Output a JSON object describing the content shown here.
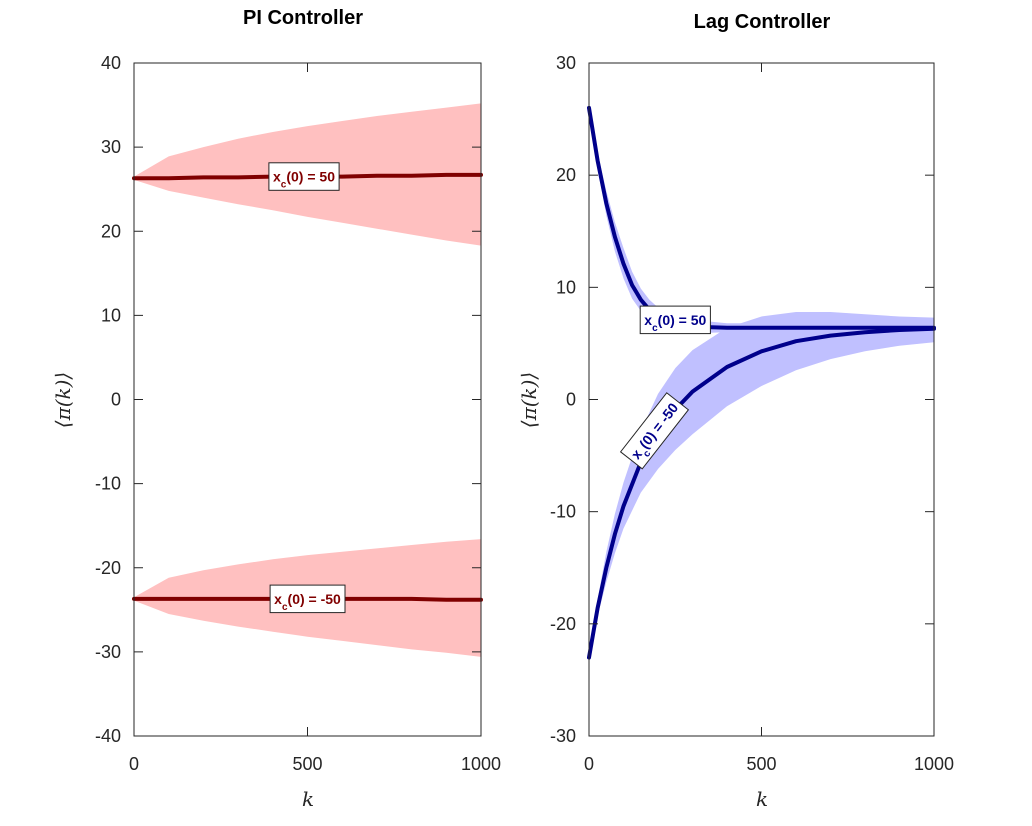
{
  "chart_data": [
    {
      "type": "line",
      "title": "PI Controller",
      "xlabel": "k",
      "ylabel": "⟨π(k)⟩",
      "xlim": [
        0,
        1000
      ],
      "ylim": [
        -40,
        40
      ],
      "xticks": [
        0,
        500,
        1000
      ],
      "xtick_labels": [
        "0",
        "500",
        "1000"
      ],
      "yticks": [
        40,
        30,
        20,
        10,
        0,
        -10,
        -20,
        -30,
        -40
      ],
      "ytick_labels": [
        "40",
        "30",
        "20",
        "10",
        "0",
        "-10",
        "-20",
        "-30",
        "-40"
      ],
      "line_color": "#800000",
      "band_color": "#ffc0c0",
      "series": [
        {
          "name": "x_c(0) = 50",
          "label_main": "x",
          "label_sub": "c",
          "label_rest": "(0) = 50",
          "label_at": [
            490,
            26.5
          ],
          "x": [
            0,
            100,
            200,
            300,
            400,
            500,
            600,
            700,
            800,
            900,
            1000
          ],
          "mean": [
            26.3,
            26.3,
            26.4,
            26.4,
            26.5,
            26.5,
            26.5,
            26.6,
            26.6,
            26.7,
            26.7
          ],
          "upper": [
            26.5,
            28.9,
            30.0,
            31.0,
            31.8,
            32.5,
            33.1,
            33.7,
            34.2,
            34.7,
            35.2
          ],
          "lower": [
            26.1,
            24.8,
            24.0,
            23.2,
            22.5,
            21.7,
            21.0,
            20.3,
            19.6,
            18.9,
            18.3
          ]
        },
        {
          "name": "x_c(0) = -50",
          "label_main": "x",
          "label_sub": "c",
          "label_rest": "(0) = -50",
          "label_at": [
            500,
            -23.7
          ],
          "x": [
            0,
            100,
            200,
            300,
            400,
            500,
            600,
            700,
            800,
            900,
            1000
          ],
          "mean": [
            -23.7,
            -23.7,
            -23.7,
            -23.7,
            -23.7,
            -23.7,
            -23.7,
            -23.7,
            -23.7,
            -23.8,
            -23.8
          ],
          "upper": [
            -23.5,
            -21.2,
            -20.3,
            -19.6,
            -19.0,
            -18.5,
            -18.1,
            -17.7,
            -17.3,
            -16.9,
            -16.6
          ],
          "lower": [
            -23.9,
            -25.5,
            -26.3,
            -27.0,
            -27.6,
            -28.2,
            -28.7,
            -29.2,
            -29.7,
            -30.1,
            -30.6
          ]
        }
      ]
    },
    {
      "type": "line",
      "title": "Lag Controller",
      "xlabel": "k",
      "ylabel": "⟨π(k)⟩",
      "xlim": [
        0,
        1000
      ],
      "ylim": [
        -30,
        30
      ],
      "xticks": [
        0,
        500,
        1000
      ],
      "xtick_labels": [
        "0",
        "500",
        "1000"
      ],
      "yticks": [
        30,
        20,
        10,
        0,
        -10,
        -20,
        -30
      ],
      "ytick_labels": [
        "30",
        "20",
        "10",
        "0",
        "-10",
        "-20",
        "-30"
      ],
      "line_color": "#00008b",
      "band_color": "#c0c0ff",
      "series": [
        {
          "name": "x_c(0) = 50",
          "label_main": "x",
          "label_sub": "c",
          "label_rest": "(0) = 50",
          "label_at": [
            250,
            7.1
          ],
          "x": [
            0,
            25,
            50,
            75,
            100,
            125,
            150,
            175,
            200,
            250,
            300,
            400,
            500,
            600,
            700,
            800,
            900,
            1000
          ],
          "mean": [
            26.0,
            21.3,
            17.5,
            14.5,
            12.1,
            10.2,
            8.9,
            8.0,
            7.4,
            6.7,
            6.5,
            6.4,
            6.4,
            6.4,
            6.4,
            6.4,
            6.4,
            6.4
          ],
          "upper": [
            26.0,
            22.0,
            18.6,
            15.8,
            13.5,
            11.4,
            9.9,
            8.9,
            8.2,
            7.4,
            7.1,
            6.8,
            6.8,
            6.8,
            6.8,
            6.8,
            6.8,
            6.8
          ],
          "lower": [
            26.0,
            20.6,
            16.4,
            13.2,
            10.8,
            9.0,
            7.9,
            7.1,
            6.6,
            6.0,
            5.9,
            6.0,
            6.0,
            6.0,
            6.0,
            6.0,
            6.0,
            6.0
          ]
        },
        {
          "name": "x_c(0) = -50",
          "label_main": "x",
          "label_sub": "c",
          "label_rest": "(0) = -50",
          "label_at": [
            190,
            -2.8
          ],
          "label_rotation": -52,
          "x": [
            0,
            25,
            50,
            75,
            100,
            150,
            200,
            250,
            300,
            400,
            500,
            600,
            700,
            800,
            900,
            1000
          ],
          "mean": [
            -23.0,
            -18.6,
            -15.0,
            -12.0,
            -9.5,
            -5.6,
            -2.9,
            -0.9,
            0.7,
            2.9,
            4.3,
            5.2,
            5.7,
            6.0,
            6.2,
            6.3
          ],
          "upper": [
            -23.0,
            -17.8,
            -13.6,
            -10.2,
            -7.4,
            -2.8,
            0.5,
            2.8,
            4.4,
            6.4,
            7.4,
            7.8,
            7.8,
            7.6,
            7.4,
            7.3
          ],
          "lower": [
            -23.0,
            -19.3,
            -16.3,
            -13.7,
            -11.5,
            -8.3,
            -6.2,
            -4.5,
            -3.1,
            -0.6,
            1.2,
            2.6,
            3.6,
            4.3,
            4.8,
            5.1
          ]
        }
      ]
    }
  ]
}
